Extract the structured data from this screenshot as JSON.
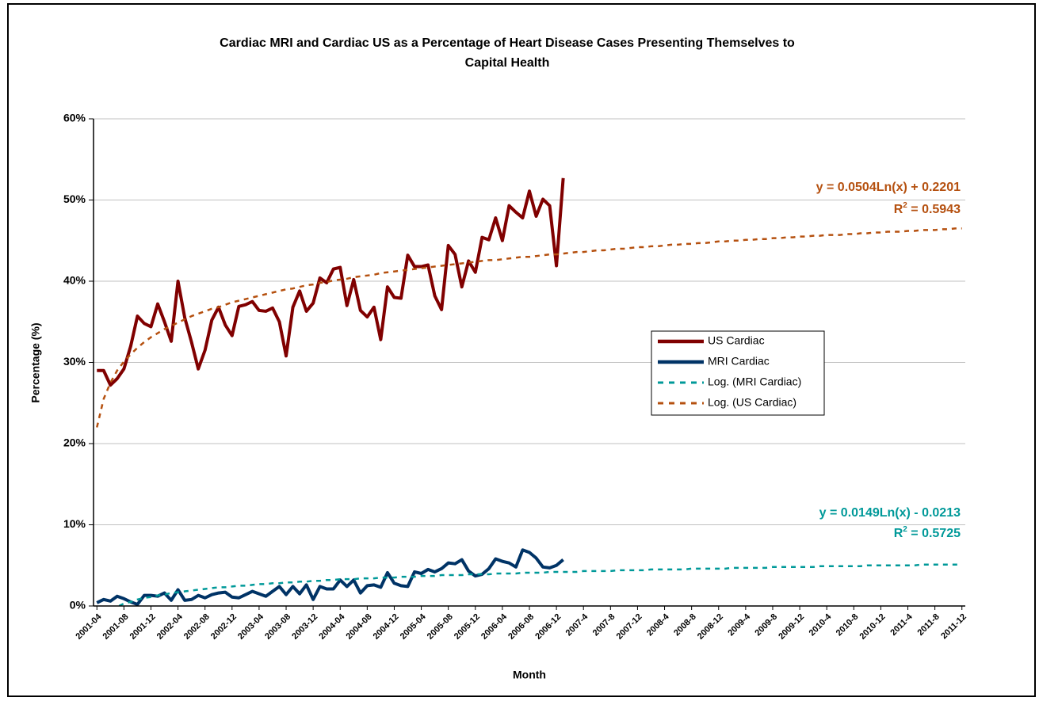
{
  "chart_data": {
    "type": "line",
    "title": [
      "Cardiac MRI and Cardiac US as a Percentage of Heart Disease Cases Presenting Themselves to",
      "Capital Health"
    ],
    "x_label": "Month",
    "y_label": "Percentage (%)",
    "categories": [
      "2001-04",
      null,
      null,
      null,
      "2001-08",
      null,
      null,
      null,
      "2001-12",
      null,
      null,
      null,
      "2002-04",
      null,
      null,
      null,
      "2002-08",
      null,
      null,
      null,
      "2002-12",
      null,
      null,
      null,
      "2003-04",
      null,
      null,
      null,
      "2003-08",
      null,
      null,
      null,
      "2003-12",
      null,
      null,
      null,
      "2004-04",
      null,
      null,
      null,
      "2004-08",
      null,
      null,
      null,
      "2004-12",
      null,
      null,
      null,
      "2005-04",
      null,
      null,
      null,
      "2005-08",
      null,
      null,
      null,
      "2005-12",
      null,
      null,
      null,
      "2006-04",
      null,
      null,
      null,
      "2006-08",
      null,
      null,
      null,
      "2006-12",
      null,
      null,
      null,
      "2007-4",
      null,
      null,
      null,
      "2007-8",
      null,
      null,
      null,
      "2007-12",
      null,
      null,
      null,
      "2008-4",
      null,
      null,
      null,
      "2008-8",
      null,
      null,
      null,
      "2008-12",
      null,
      null,
      null,
      "2009-4",
      null,
      null,
      null,
      "2009-8",
      null,
      null,
      null,
      "2009-12",
      null,
      null,
      null,
      "2010-4",
      null,
      null,
      null,
      "2010-8",
      null,
      null,
      null,
      "2010-12",
      null,
      null,
      null,
      "2011-4",
      null,
      null,
      null,
      "2011-8",
      null,
      null,
      null,
      "2011-12"
    ],
    "series": [
      {
        "name": "US Cardiac",
        "color": "#800000",
        "style": "solid",
        "values": [
          29,
          29,
          27.2,
          28,
          29.2,
          32,
          35.7,
          34.8,
          34.4,
          37.2,
          35,
          32.6,
          40,
          35.5,
          32.5,
          29.2,
          31.5,
          35.2,
          36.8,
          34.6,
          33.3,
          36.9,
          37.1,
          37.5,
          36.4,
          36.3,
          36.7,
          35,
          30.8,
          36.8,
          38.8,
          36.3,
          37.3,
          40.4,
          39.8,
          41.5,
          41.7,
          37,
          40.2,
          36.4,
          35.6,
          36.8,
          32.8,
          39.3,
          38,
          37.9,
          43.2,
          41.8,
          41.8,
          42,
          38.2,
          36.5,
          44.4,
          43.3,
          39.3,
          42.5,
          41.1,
          45.4,
          45.1,
          47.8,
          45,
          49.3,
          48.5,
          47.8,
          51.1,
          48,
          50.1,
          49.3,
          41.9,
          52.7,
          null,
          null,
          null,
          null,
          null,
          null,
          null,
          null,
          null,
          null,
          null,
          null,
          null,
          null,
          null,
          null,
          null,
          null,
          null,
          null,
          null,
          null,
          null,
          null,
          null,
          null,
          null,
          null,
          null,
          null,
          null,
          null,
          null,
          null,
          null,
          null,
          null,
          null,
          null,
          null,
          null,
          null,
          null,
          null,
          null,
          null,
          null,
          null,
          null,
          null,
          null,
          null,
          null,
          null,
          null,
          null,
          null,
          null,
          null
        ]
      },
      {
        "name": "MRI Cardiac",
        "color": "#003366",
        "style": "solid",
        "values": [
          0.4,
          0.8,
          0.6,
          1.2,
          0.9,
          0.5,
          0.2,
          1.3,
          1.3,
          1.2,
          1.6,
          0.7,
          2.0,
          0.7,
          0.8,
          1.3,
          1.0,
          1.4,
          1.6,
          1.7,
          1.1,
          1.0,
          1.4,
          1.8,
          1.5,
          1.2,
          1.8,
          2.4,
          1.4,
          2.4,
          1.5,
          2.6,
          0.8,
          2.4,
          2.1,
          2.1,
          3.2,
          2.4,
          3.2,
          1.6,
          2.5,
          2.6,
          2.3,
          4.1,
          2.8,
          2.5,
          2.4,
          4.2,
          4.0,
          4.5,
          4.2,
          4.6,
          5.3,
          5.2,
          5.7,
          4.3,
          3.7,
          3.9,
          4.6,
          5.8,
          5.5,
          5.3,
          4.8,
          6.9,
          6.6,
          5.9,
          4.8,
          4.7,
          5.0,
          5.7,
          null,
          null,
          null,
          null,
          null,
          null,
          null,
          null,
          null,
          null,
          null,
          null,
          null,
          null,
          null,
          null,
          null,
          null,
          null,
          null,
          null,
          null,
          null,
          null,
          null,
          null,
          null,
          null,
          null,
          null,
          null,
          null,
          null,
          null,
          null,
          null,
          null,
          null,
          null,
          null,
          null,
          null,
          null,
          null,
          null,
          null,
          null,
          null,
          null,
          null,
          null,
          null,
          null,
          null,
          null,
          null,
          null,
          null,
          null
        ]
      },
      {
        "name": "Log. (MRI Cardiac)",
        "color": "#009999",
        "style": "dashed",
        "values": [
          -2.1,
          -1.1,
          -0.5,
          -0.1,
          0.3,
          0.5,
          0.8,
          1.0,
          1.1,
          1.3,
          1.4,
          1.6,
          1.7,
          1.8,
          1.9,
          2.0,
          2.1,
          2.2,
          2.3,
          2.3,
          2.4,
          2.5,
          2.5,
          2.6,
          2.7,
          2.7,
          2.8,
          2.8,
          2.9,
          2.9,
          3.0,
          3.0,
          3.1,
          3.1,
          3.2,
          3.2,
          3.3,
          3.3,
          3.3,
          3.4,
          3.4,
          3.4,
          3.5,
          3.5,
          3.5,
          3.6,
          3.6,
          3.6,
          3.7,
          3.7,
          3.7,
          3.8,
          3.8,
          3.8,
          3.8,
          3.9,
          3.9,
          3.9,
          3.9,
          4.0,
          4.0,
          4.0,
          4.0,
          4.1,
          4.1,
          4.1,
          4.1,
          4.2,
          4.2,
          4.2,
          4.2,
          4.2,
          4.3,
          4.3,
          4.3,
          4.3,
          4.3,
          4.4,
          4.4,
          4.4,
          4.4,
          4.4,
          4.5,
          4.5,
          4.5,
          4.5,
          4.5,
          4.5,
          4.6,
          4.6,
          4.6,
          4.6,
          4.6,
          4.6,
          4.7,
          4.7,
          4.7,
          4.7,
          4.7,
          4.7,
          4.8,
          4.8,
          4.8,
          4.8,
          4.8,
          4.8,
          4.8,
          4.9,
          4.9,
          4.9,
          4.9,
          4.9,
          4.9,
          4.9,
          5.0,
          5.0,
          5.0,
          5.0,
          5.0,
          5.0,
          5.0,
          5.0,
          5.1,
          5.1,
          5.1,
          5.1,
          5.1,
          5.1,
          5.1
        ]
      },
      {
        "name": "Log. (US Cardiac)",
        "color": "#b5500f",
        "style": "dashed",
        "values": [
          22.0,
          25.5,
          27.5,
          29.0,
          30.1,
          31.0,
          31.8,
          32.5,
          33.1,
          33.6,
          34.1,
          34.5,
          34.9,
          35.3,
          35.7,
          36.0,
          36.3,
          36.6,
          36.8,
          37.1,
          37.4,
          37.6,
          37.8,
          38.0,
          38.2,
          38.4,
          38.6,
          38.8,
          39.0,
          39.1,
          39.3,
          39.5,
          39.6,
          39.8,
          39.9,
          40.1,
          40.2,
          40.3,
          40.5,
          40.6,
          40.7,
          40.8,
          41.0,
          41.1,
          41.2,
          41.3,
          41.4,
          41.5,
          41.6,
          41.7,
          41.8,
          41.9,
          42.0,
          42.1,
          42.2,
          42.3,
          42.4,
          42.5,
          42.6,
          42.6,
          42.7,
          42.8,
          42.9,
          43.0,
          43.0,
          43.1,
          43.2,
          43.3,
          43.3,
          43.4,
          43.5,
          43.6,
          43.6,
          43.7,
          43.8,
          43.8,
          43.9,
          44.0,
          44.0,
          44.1,
          44.2,
          44.2,
          44.3,
          44.3,
          44.4,
          44.5,
          44.5,
          44.6,
          44.6,
          44.7,
          44.7,
          44.8,
          44.9,
          44.9,
          45.0,
          45.0,
          45.1,
          45.1,
          45.2,
          45.2,
          45.3,
          45.3,
          45.4,
          45.4,
          45.5,
          45.5,
          45.6,
          45.6,
          45.7,
          45.7,
          45.7,
          45.8,
          45.8,
          45.9,
          45.9,
          46.0,
          46.0,
          46.1,
          46.1,
          46.1,
          46.2,
          46.2,
          46.3,
          46.3,
          46.3,
          46.4,
          46.4,
          46.5,
          46.5
        ]
      }
    ],
    "annotations": [
      {
        "equation": "y = 0.0504Ln(x) + 0.2201",
        "r2": [
          "R",
          "2",
          " = 0.5943"
        ],
        "color": "#b5500f"
      },
      {
        "equation": "y = 0.0149Ln(x) - 0.0213",
        "r2": [
          "R",
          "2",
          " = 0.5725"
        ],
        "color": "#009999"
      }
    ],
    "ylim": [
      0,
      60
    ],
    "yticks": [
      {
        "value": 0,
        "label": "0%"
      },
      {
        "value": 10,
        "label": "10%"
      },
      {
        "value": 20,
        "label": "20%"
      },
      {
        "value": 30,
        "label": "30%"
      },
      {
        "value": 40,
        "label": "40%"
      },
      {
        "value": 50,
        "label": "50%"
      },
      {
        "value": 60,
        "label": "60%"
      }
    ],
    "grid": true,
    "legend": "right"
  }
}
